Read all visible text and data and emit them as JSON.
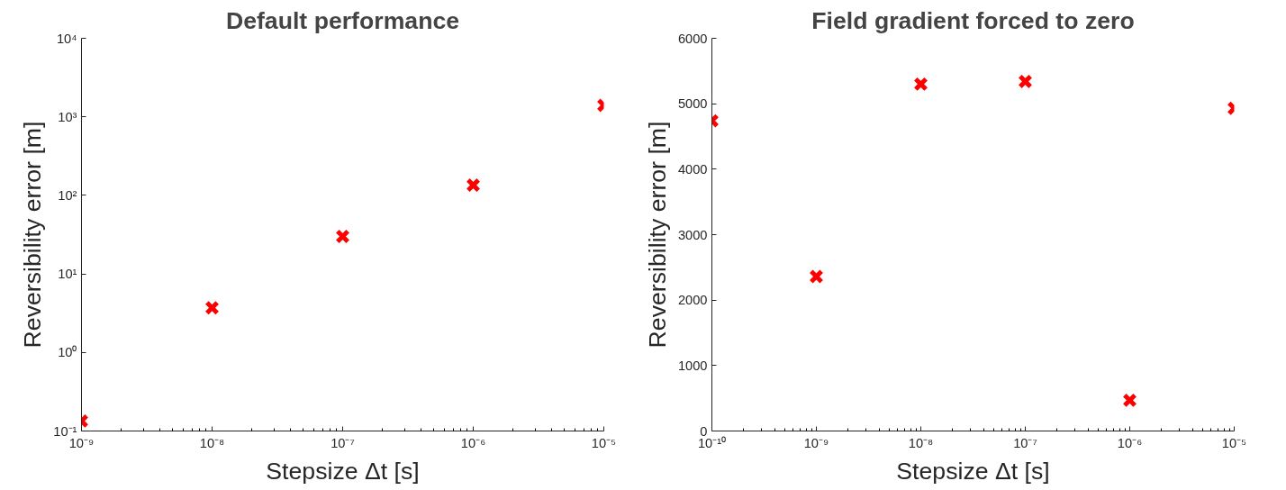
{
  "chart_data": [
    {
      "type": "scatter",
      "title": "Default performance",
      "xlabel": "Stepsize Δt [s]",
      "ylabel": "Reversibility error [m]",
      "log": "xy",
      "grid": false,
      "marker": "cross",
      "x": [
        1e-09,
        1e-08,
        1e-07,
        1e-06,
        1e-05
      ],
      "series": [
        {
          "color": "#ff0000",
          "values": [
            0.134,
            3.7,
            30,
            135,
            1400
          ]
        }
      ],
      "xlim": [
        1e-09,
        1e-05
      ],
      "ylim": [
        0.1,
        10000
      ],
      "xticks": [
        {
          "value": 1e-09,
          "label": "10⁻⁹"
        },
        {
          "value": 1e-08,
          "label": "10⁻⁸"
        },
        {
          "value": 1e-07,
          "label": "10⁻⁷"
        },
        {
          "value": 1e-06,
          "label": "10⁻⁶"
        },
        {
          "value": 1e-05,
          "label": "10⁻⁵"
        }
      ],
      "yticks": [
        {
          "value": 0.1,
          "label": "10⁻¹"
        },
        {
          "value": 1,
          "label": "10⁰"
        },
        {
          "value": 10,
          "label": "10¹"
        },
        {
          "value": 100,
          "label": "10²"
        },
        {
          "value": 1000,
          "label": "10³"
        },
        {
          "value": 10000,
          "label": "10⁴"
        }
      ]
    },
    {
      "type": "scatter",
      "title": "Field gradient forced to zero",
      "xlabel": "Stepsize Δt [s]",
      "ylabel": "Reversibility error [m]",
      "log": "x",
      "grid": false,
      "marker": "cross",
      "x": [
        1e-10,
        1e-09,
        1e-08,
        1e-07,
        1e-06,
        1e-05
      ],
      "series": [
        {
          "color": "#ff0000",
          "values": [
            4740,
            2360,
            5300,
            5340,
            470,
            4930
          ]
        }
      ],
      "xlim": [
        1e-10,
        1e-05
      ],
      "ylim": [
        0,
        6000
      ],
      "xticks": [
        {
          "value": 1e-10,
          "label": "10⁻¹⁰"
        },
        {
          "value": 1e-09,
          "label": "10⁻⁹"
        },
        {
          "value": 1e-08,
          "label": "10⁻⁸"
        },
        {
          "value": 1e-07,
          "label": "10⁻⁷"
        },
        {
          "value": 1e-06,
          "label": "10⁻⁶"
        },
        {
          "value": 1e-05,
          "label": "10⁻⁵"
        }
      ],
      "yticks": [
        0,
        1000,
        2000,
        3000,
        4000,
        5000,
        6000
      ]
    }
  ]
}
